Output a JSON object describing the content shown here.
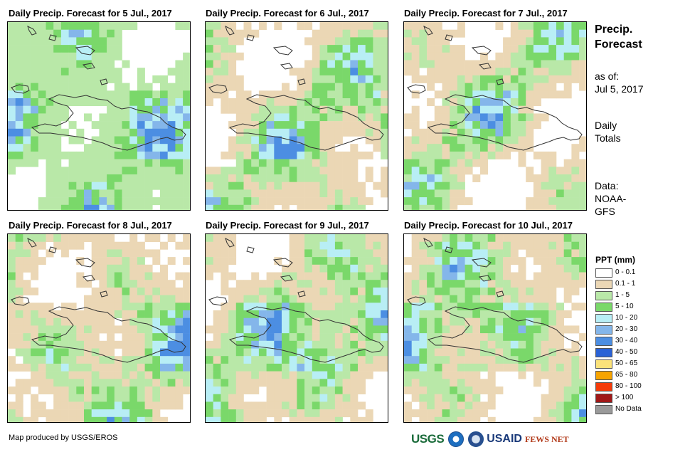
{
  "panels": [
    {
      "title": "Daily Precip. Forecast for 5 Jul., 2017"
    },
    {
      "title": "Daily Precip. Forecast for 6 Jul., 2017"
    },
    {
      "title": "Daily Precip. Forecast for 7 Jul., 2017"
    },
    {
      "title": "Daily Precip. Forecast for 8 Jul., 2017"
    },
    {
      "title": "Daily Precip. Forecast for 9 Jul., 2017"
    },
    {
      "title": "Daily Precip. Forecast for 10 Jul., 2017"
    }
  ],
  "sidebar": {
    "title_line1": "Precip.",
    "title_line2": "Forecast",
    "asof_label": "as of:",
    "asof_date": "Jul 5, 2017",
    "totals_line1": "Daily",
    "totals_line2": "Totals",
    "data_line1": "Data:",
    "data_line2": "NOAA-",
    "data_line3": "GFS"
  },
  "legend": {
    "title": "PPT (mm)",
    "items": [
      {
        "label": "0 - 0.1",
        "color": "#ffffff"
      },
      {
        "label": "0.1 - 1",
        "color": "#ebd7b5"
      },
      {
        "label": "1 - 5",
        "color": "#b9e8a8"
      },
      {
        "label": "5 - 10",
        "color": "#7ad86a"
      },
      {
        "label": "10 - 20",
        "color": "#b8eef5"
      },
      {
        "label": "20 - 30",
        "color": "#84b6ea"
      },
      {
        "label": "30 - 40",
        "color": "#4c8ee2"
      },
      {
        "label": "40 - 50",
        "color": "#2a62d6"
      },
      {
        "label": "50 - 65",
        "color": "#fbe27a"
      },
      {
        "label": "65 - 80",
        "color": "#f7a400"
      },
      {
        "label": "80 - 100",
        "color": "#f53b0a"
      },
      {
        "label": "> 100",
        "color": "#a01818"
      },
      {
        "label": "No Data",
        "color": "#9a9a9a"
      }
    ]
  },
  "credit": "Map produced by USGS/EROS",
  "logos": {
    "usgs": "USGS",
    "usaid": "USAID",
    "fews": "FEWS NET"
  }
}
